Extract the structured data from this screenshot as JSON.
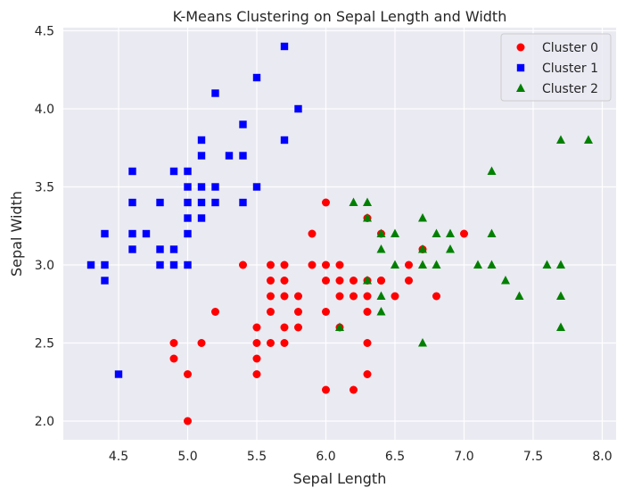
{
  "chart_data": {
    "type": "scatter",
    "title": "K-Means Clustering on Sepal Length and Width",
    "xlabel": "Sepal Length",
    "ylabel": "Sepal Width",
    "xlim": [
      4.1,
      8.1
    ],
    "ylim": [
      1.88,
      4.52
    ],
    "xticks": [
      "4.5",
      "5.0",
      "5.5",
      "6.0",
      "6.5",
      "7.0",
      "7.5",
      "8.0"
    ],
    "yticks": [
      "2.0",
      "2.5",
      "3.0",
      "3.5",
      "4.0",
      "4.5"
    ],
    "grid": true,
    "legend_position": "top-right",
    "background": "#eaeaf2",
    "series": [
      {
        "name": "Cluster 0",
        "marker": "circle",
        "color": "#ff0000",
        "points": [
          [
            5.4,
            3.0
          ],
          [
            5.6,
            3.0
          ],
          [
            5.7,
            3.0
          ],
          [
            5.9,
            3.0
          ],
          [
            6.0,
            3.0
          ],
          [
            6.1,
            3.0
          ],
          [
            6.6,
            3.0
          ],
          [
            5.6,
            2.9
          ],
          [
            5.7,
            2.9
          ],
          [
            6.0,
            2.9
          ],
          [
            6.1,
            2.9
          ],
          [
            6.2,
            2.9
          ],
          [
            6.3,
            2.9
          ],
          [
            6.4,
            2.9
          ],
          [
            6.6,
            2.9
          ],
          [
            5.6,
            2.8
          ],
          [
            5.7,
            2.8
          ],
          [
            5.8,
            2.8
          ],
          [
            6.1,
            2.8
          ],
          [
            6.2,
            2.8
          ],
          [
            6.3,
            2.8
          ],
          [
            6.8,
            2.8
          ],
          [
            5.2,
            2.7
          ],
          [
            5.6,
            2.7
          ],
          [
            5.8,
            2.7
          ],
          [
            6.0,
            2.7
          ],
          [
            6.3,
            2.7
          ],
          [
            5.5,
            2.6
          ],
          [
            5.7,
            2.6
          ],
          [
            5.8,
            2.6
          ],
          [
            6.1,
            2.6
          ],
          [
            4.9,
            2.5
          ],
          [
            5.1,
            2.5
          ],
          [
            5.5,
            2.5
          ],
          [
            5.6,
            2.5
          ],
          [
            5.7,
            2.5
          ],
          [
            6.3,
            2.5
          ],
          [
            4.9,
            2.4
          ],
          [
            5.5,
            2.4
          ],
          [
            5.0,
            2.3
          ],
          [
            5.5,
            2.3
          ],
          [
            6.3,
            2.3
          ],
          [
            6.0,
            2.2
          ],
          [
            6.2,
            2.2
          ],
          [
            5.0,
            2.0
          ],
          [
            5.9,
            3.2
          ],
          [
            6.0,
            3.4
          ],
          [
            6.3,
            3.3
          ],
          [
            6.4,
            3.2
          ],
          [
            6.7,
            3.1
          ],
          [
            7.0,
            3.2
          ],
          [
            6.5,
            2.8
          ],
          [
            6.4,
            2.9
          ]
        ]
      },
      {
        "name": "Cluster 1",
        "marker": "square",
        "color": "#0000ff",
        "points": [
          [
            5.7,
            4.4
          ],
          [
            5.5,
            4.2
          ],
          [
            5.2,
            4.1
          ],
          [
            5.8,
            4.0
          ],
          [
            5.4,
            3.9
          ],
          [
            5.1,
            3.8
          ],
          [
            5.7,
            3.8
          ],
          [
            5.1,
            3.7
          ],
          [
            5.3,
            3.7
          ],
          [
            5.4,
            3.7
          ],
          [
            4.6,
            3.6
          ],
          [
            4.9,
            3.6
          ],
          [
            5.0,
            3.6
          ],
          [
            5.0,
            3.5
          ],
          [
            5.1,
            3.5
          ],
          [
            5.2,
            3.5
          ],
          [
            5.5,
            3.5
          ],
          [
            4.6,
            3.4
          ],
          [
            4.8,
            3.4
          ],
          [
            5.0,
            3.4
          ],
          [
            5.1,
            3.4
          ],
          [
            5.2,
            3.4
          ],
          [
            5.4,
            3.4
          ],
          [
            5.0,
            3.3
          ],
          [
            5.1,
            3.3
          ],
          [
            4.4,
            3.2
          ],
          [
            4.6,
            3.2
          ],
          [
            4.7,
            3.2
          ],
          [
            5.0,
            3.2
          ],
          [
            4.6,
            3.1
          ],
          [
            4.8,
            3.1
          ],
          [
            4.9,
            3.1
          ],
          [
            4.3,
            3.0
          ],
          [
            4.4,
            3.0
          ],
          [
            4.8,
            3.0
          ],
          [
            4.9,
            3.0
          ],
          [
            5.0,
            3.0
          ],
          [
            4.4,
            2.9
          ],
          [
            4.5,
            2.3
          ]
        ]
      },
      {
        "name": "Cluster 2",
        "marker": "triangle",
        "color": "#008000",
        "points": [
          [
            7.7,
            3.8
          ],
          [
            7.9,
            3.8
          ],
          [
            7.2,
            3.6
          ],
          [
            6.2,
            3.4
          ],
          [
            6.3,
            3.4
          ],
          [
            6.3,
            3.3
          ],
          [
            6.7,
            3.3
          ],
          [
            6.4,
            3.2
          ],
          [
            6.5,
            3.2
          ],
          [
            6.8,
            3.2
          ],
          [
            6.9,
            3.2
          ],
          [
            7.2,
            3.2
          ],
          [
            6.4,
            3.1
          ],
          [
            6.7,
            3.1
          ],
          [
            6.9,
            3.1
          ],
          [
            6.5,
            3.0
          ],
          [
            6.7,
            3.0
          ],
          [
            6.8,
            3.0
          ],
          [
            7.1,
            3.0
          ],
          [
            7.2,
            3.0
          ],
          [
            7.6,
            3.0
          ],
          [
            7.7,
            3.0
          ],
          [
            6.3,
            2.9
          ],
          [
            7.3,
            2.9
          ],
          [
            6.4,
            2.8
          ],
          [
            7.4,
            2.8
          ],
          [
            7.7,
            2.8
          ],
          [
            6.4,
            2.7
          ],
          [
            6.1,
            2.6
          ],
          [
            7.7,
            2.6
          ],
          [
            6.7,
            2.5
          ]
        ]
      }
    ]
  }
}
